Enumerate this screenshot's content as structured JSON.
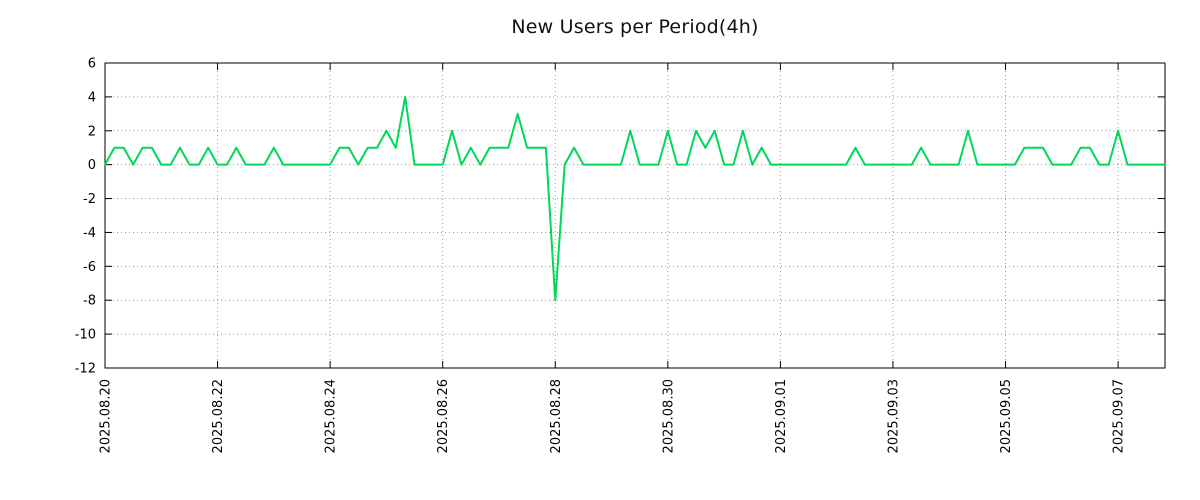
{
  "chart_data": {
    "type": "line",
    "title": "New Users per Period(4h)",
    "x_start": "2025.08.20 00:00",
    "interval_hours": 4,
    "values": [
      0,
      1,
      1,
      0,
      1,
      1,
      0,
      0,
      1,
      0,
      0,
      1,
      0,
      0,
      1,
      0,
      0,
      0,
      1,
      0,
      0,
      0,
      0,
      0,
      0,
      1,
      1,
      0,
      1,
      1,
      2,
      1,
      4,
      0,
      0,
      0,
      0,
      2,
      0,
      1,
      0,
      1,
      1,
      1,
      3,
      1,
      1,
      1,
      -8,
      0,
      1,
      0,
      0,
      0,
      0,
      0,
      2,
      0,
      0,
      0,
      2,
      0,
      0,
      2,
      1,
      2,
      0,
      0,
      2,
      0,
      1,
      0,
      0,
      0,
      0,
      0,
      0,
      0,
      0,
      0,
      1,
      0,
      0,
      0,
      0,
      0,
      0,
      1,
      0,
      0,
      0,
      0,
      2,
      0,
      0,
      0,
      0,
      0,
      1,
      1,
      1,
      0,
      0,
      0,
      1,
      1,
      0,
      0,
      2,
      0,
      0,
      0,
      0,
      0
    ],
    "x_tick_labels": [
      "2025.08.20",
      "2025.08.22",
      "2025.08.24",
      "2025.08.26",
      "2025.08.28",
      "2025.08.30",
      "2025.09.01",
      "2025.09.03",
      "2025.09.05",
      "2025.09.07"
    ],
    "x_tick_indices": [
      0,
      12,
      24,
      36,
      48,
      60,
      72,
      84,
      96,
      108
    ],
    "y_ticks": [
      6,
      4,
      2,
      0,
      -2,
      -4,
      -6,
      -8,
      -10,
      -12
    ],
    "ylim": [
      -12,
      6
    ],
    "grid": "dotted",
    "legend": "none",
    "line_color": "#00d858",
    "background": "#ffffff",
    "border_color": "#000000",
    "grid_color": "#9a9a9a",
    "text_color": "#000000"
  }
}
